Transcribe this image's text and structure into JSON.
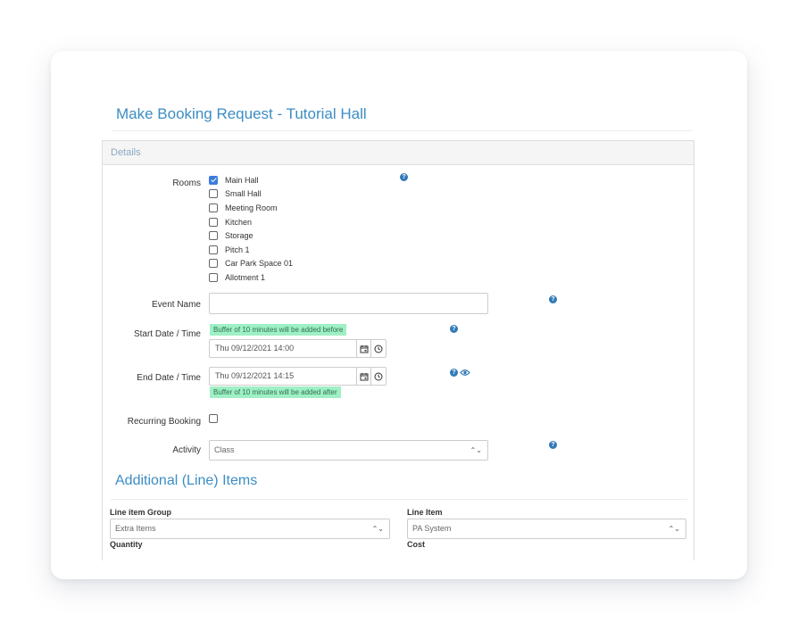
{
  "page_title": "Make Booking Request - Tutorial Hall",
  "details": {
    "heading": "Details",
    "rooms_label": "Rooms",
    "rooms": [
      {
        "label": "Main Hall",
        "checked": true
      },
      {
        "label": "Small Hall",
        "checked": false
      },
      {
        "label": "Meeting Room",
        "checked": false
      },
      {
        "label": "Kitchen",
        "checked": false
      },
      {
        "label": "Storage",
        "checked": false
      },
      {
        "label": "Pitch 1",
        "checked": false
      },
      {
        "label": "Car Park Space 01",
        "checked": false
      },
      {
        "label": "Allotment 1",
        "checked": false
      }
    ],
    "event_name_label": "Event Name",
    "event_name_value": "",
    "start_label": "Start Date / Time",
    "start_buffer": "Buffer of 10 minutes will be added before",
    "start_value": "Thu 09/12/2021 14:00",
    "end_label": "End Date / Time",
    "end_value": "Thu 09/12/2021 14:15",
    "end_buffer": "Buffer of 10 minutes will be added after",
    "recurring_label": "Recurring Booking",
    "recurring_checked": false,
    "activity_label": "Activity",
    "activity_value": "Class",
    "help_glyph": "?"
  },
  "additional": {
    "title": "Additional (Line) Items",
    "line_item_group_label": "Line item Group",
    "line_item_group_value": "Extra Items",
    "line_item_label": "Line Item",
    "line_item_value": "PA System",
    "quantity_label": "Quantity",
    "cost_label": "Cost"
  },
  "icons": {
    "help": "help-icon",
    "eye": "eye-icon",
    "calendar": "calendar-icon",
    "clock": "clock-icon",
    "select_chevron": "chevron-updown-icon"
  },
  "colors": {
    "accent": "#3c8dc4",
    "checkbox_checked": "#3b7ddd",
    "buffer_badge": "#9ff0c4",
    "help_icon": "#337ab7"
  }
}
